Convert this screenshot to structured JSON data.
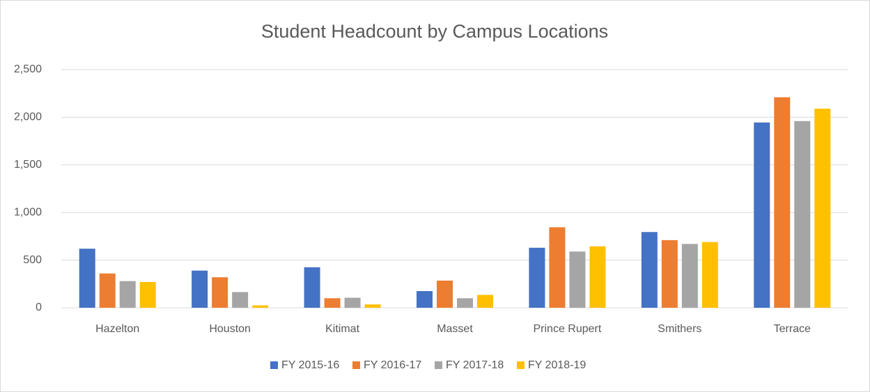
{
  "chart_data": {
    "type": "bar",
    "title": "Student Headcount by Campus Locations",
    "categories": [
      "Hazelton",
      "Houston",
      "Kitimat",
      "Masset",
      "Prince Rupert",
      "Smithers",
      "Terrace"
    ],
    "series": [
      {
        "name": "FY 2015-16",
        "color": "#4472c4",
        "values": [
          620,
          390,
          425,
          175,
          630,
          795,
          1945
        ]
      },
      {
        "name": "FY 2016-17",
        "color": "#ed7d31",
        "values": [
          360,
          320,
          100,
          285,
          845,
          710,
          2210
        ]
      },
      {
        "name": "FY 2017-18",
        "color": "#a5a5a5",
        "values": [
          280,
          165,
          105,
          100,
          590,
          670,
          1960
        ]
      },
      {
        "name": "FY 2018-19",
        "color": "#ffc000",
        "values": [
          270,
          25,
          35,
          135,
          645,
          690,
          2090
        ]
      }
    ],
    "ylim": [
      0,
      2500
    ],
    "yticks": [
      0,
      500,
      {
        "value": 1000,
        "label": "1,000"
      },
      {
        "value": 1500,
        "label": "1,500"
      },
      {
        "value": 2000,
        "label": "2,000"
      },
      {
        "value": 2500,
        "label": "2,500"
      }
    ],
    "grid": true,
    "legend": "bottom"
  }
}
